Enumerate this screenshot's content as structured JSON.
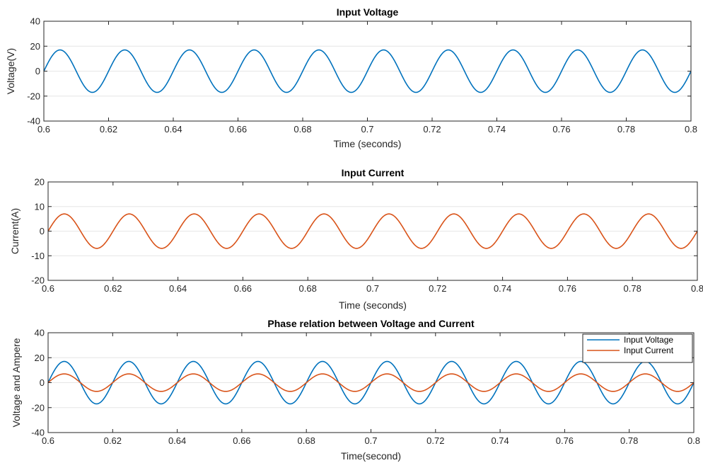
{
  "chart_data": [
    {
      "type": "line",
      "title": "Input Voltage",
      "xlabel": "Time (seconds)",
      "ylabel": "Voltage(V)",
      "xlim": [
        0.6,
        0.8
      ],
      "ylim": [
        -40,
        40
      ],
      "xticks": [
        "0.6",
        "0.62",
        "0.64",
        "0.66",
        "0.68",
        "0.7",
        "0.72",
        "0.74",
        "0.76",
        "0.78",
        "0.8"
      ],
      "yticks": [
        "40",
        "20",
        "0",
        "-20",
        "-40"
      ],
      "grid": "horizontal",
      "series": [
        {
          "amplitude": 17,
          "frequency_hz": 50,
          "phase": 0,
          "color": "#0072BD",
          "x": [
            0.6,
            0.605,
            0.61,
            0.615,
            0.62,
            0.625,
            0.63,
            0.635,
            0.64,
            0.645,
            0.65,
            0.655,
            0.66,
            0.665,
            0.67,
            0.675,
            0.68,
            0.685,
            0.69,
            0.695,
            0.7,
            0.705,
            0.71,
            0.715,
            0.72,
            0.725,
            0.73,
            0.735,
            0.74,
            0.745,
            0.75,
            0.755,
            0.76,
            0.765,
            0.77,
            0.775,
            0.78,
            0.785,
            0.79,
            0.795,
            0.8
          ],
          "y": [
            0,
            17,
            0,
            -17,
            0,
            17,
            0,
            -17,
            0,
            17,
            0,
            -17,
            0,
            17,
            0,
            -17,
            0,
            17,
            0,
            -17,
            0,
            17,
            0,
            -17,
            0,
            17,
            0,
            -17,
            0,
            17,
            0,
            -17,
            0,
            17,
            0,
            -17,
            0,
            17,
            0,
            -17,
            0
          ]
        }
      ]
    },
    {
      "type": "line",
      "title": "Input Current",
      "xlabel": "Time (seconds)",
      "ylabel": "Current(A)",
      "xlim": [
        0.6,
        0.8
      ],
      "ylim": [
        -20,
        20
      ],
      "xticks": [
        "0.6",
        "0.62",
        "0.64",
        "0.66",
        "0.68",
        "0.7",
        "0.72",
        "0.74",
        "0.76",
        "0.78",
        "0.8"
      ],
      "yticks": [
        "20",
        "10",
        "0",
        "-10",
        "-20"
      ],
      "grid": "horizontal",
      "series": [
        {
          "amplitude": 7,
          "frequency_hz": 50,
          "phase": 0,
          "color": "#D95319",
          "x": [
            0.6,
            0.605,
            0.61,
            0.615,
            0.62,
            0.625,
            0.63,
            0.635,
            0.64,
            0.645,
            0.65,
            0.655,
            0.66,
            0.665,
            0.67,
            0.675,
            0.68,
            0.685,
            0.69,
            0.695,
            0.7,
            0.705,
            0.71,
            0.715,
            0.72,
            0.725,
            0.73,
            0.735,
            0.74,
            0.745,
            0.75,
            0.755,
            0.76,
            0.765,
            0.77,
            0.775,
            0.78,
            0.785,
            0.79,
            0.795,
            0.8
          ],
          "y": [
            0,
            7,
            0,
            -7,
            0,
            7,
            0,
            -7,
            0,
            7,
            0,
            -7,
            0,
            7,
            0,
            -7,
            0,
            7,
            0,
            -7,
            0,
            7,
            0,
            -7,
            0,
            7,
            0,
            -7,
            0,
            7,
            0,
            -7,
            0,
            7,
            0,
            -7,
            0,
            7,
            0,
            -7,
            0
          ]
        }
      ]
    },
    {
      "type": "line",
      "title": "Phase relation between Voltage and Current",
      "xlabel": "Time(second)",
      "ylabel": "Voltage and Ampere",
      "xlim": [
        0.6,
        0.8
      ],
      "ylim": [
        -40,
        40
      ],
      "xticks": [
        "0.6",
        "0.62",
        "0.64",
        "0.66",
        "0.68",
        "0.7",
        "0.72",
        "0.74",
        "0.76",
        "0.78",
        "0.8"
      ],
      "yticks": [
        "40",
        "20",
        "0",
        "-20",
        "-40"
      ],
      "grid": "horizontal",
      "legend": "top-right",
      "series": [
        {
          "name": "Input Voltage",
          "amplitude": 17,
          "frequency_hz": 50,
          "phase": 0,
          "color": "#0072BD",
          "x": [
            0.6,
            0.605,
            0.61,
            0.615,
            0.62,
            0.625,
            0.63,
            0.635,
            0.64,
            0.645,
            0.65,
            0.655,
            0.66,
            0.665,
            0.67,
            0.675,
            0.68,
            0.685,
            0.69,
            0.695,
            0.7,
            0.705,
            0.71,
            0.715,
            0.72,
            0.725,
            0.73,
            0.735,
            0.74,
            0.745,
            0.75,
            0.755,
            0.76,
            0.765,
            0.77,
            0.775,
            0.78,
            0.785,
            0.79,
            0.795,
            0.8
          ],
          "y": [
            0,
            17,
            0,
            -17,
            0,
            17,
            0,
            -17,
            0,
            17,
            0,
            -17,
            0,
            17,
            0,
            -17,
            0,
            17,
            0,
            -17,
            0,
            17,
            0,
            -17,
            0,
            17,
            0,
            -17,
            0,
            17,
            0,
            -17,
            0,
            17,
            0,
            -17,
            0,
            17,
            0,
            -17,
            0
          ]
        },
        {
          "name": "Input Current",
          "amplitude": 7,
          "frequency_hz": 50,
          "phase": 0,
          "color": "#D95319",
          "x": [
            0.6,
            0.605,
            0.61,
            0.615,
            0.62,
            0.625,
            0.63,
            0.635,
            0.64,
            0.645,
            0.65,
            0.655,
            0.66,
            0.665,
            0.67,
            0.675,
            0.68,
            0.685,
            0.69,
            0.695,
            0.7,
            0.705,
            0.71,
            0.715,
            0.72,
            0.725,
            0.73,
            0.735,
            0.74,
            0.745,
            0.75,
            0.755,
            0.76,
            0.765,
            0.77,
            0.775,
            0.78,
            0.785,
            0.79,
            0.795,
            0.8
          ],
          "y": [
            0,
            7,
            0,
            -7,
            0,
            7,
            0,
            -7,
            0,
            7,
            0,
            -7,
            0,
            7,
            0,
            -7,
            0,
            7,
            0,
            -7,
            0,
            7,
            0,
            -7,
            0,
            7,
            0,
            -7,
            0,
            7,
            0,
            -7,
            0,
            7,
            0,
            -7,
            0,
            7,
            0,
            -7,
            0
          ]
        }
      ]
    }
  ]
}
